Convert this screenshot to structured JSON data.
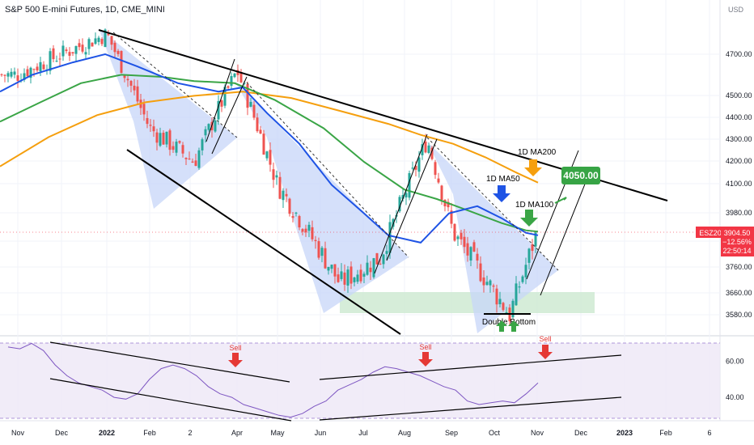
{
  "header": {
    "title": "S&P 500 E-mini Futures, 1D, CME_MINI",
    "currency": "USD"
  },
  "price_tag": {
    "symbol": "ESZ2022",
    "price": "3904.50",
    "change": "−12.56%",
    "countdown": "22:50:14"
  },
  "annotations": {
    "target": "4050.00",
    "ma200": "1D MA200",
    "ma50": "1D MA50",
    "ma100": "1D MA100",
    "double_bottom": "Double Bottom",
    "sell": "Sell"
  },
  "colors": {
    "candle_up": "#26a69a",
    "candle_down": "#ef5350",
    "ma50": "#1e53e5",
    "ma100": "#3aa546",
    "ma200": "#f59f0e",
    "channel_fill": "#c7d6f8",
    "support_zone": "#cfead2",
    "rsi_line": "#7e57c2",
    "rsi_band": "#ede7f6",
    "price_tag": "#f23645",
    "target_box": "#37a445"
  },
  "chart_data": [
    {
      "type": "candlestick",
      "title": "S&P 500 E-mini Futures, 1D, CME_MINI",
      "x_ticks": [
        "Nov",
        "Dec",
        "2022",
        "Feb",
        "2",
        "Apr",
        "May",
        "Jun",
        "Jul",
        "Aug",
        "Sep",
        "Oct",
        "Nov",
        "Dec",
        "2023",
        "Feb",
        "6"
      ],
      "y_ticks": [
        4700,
        4500,
        4400,
        4300,
        4200,
        4100,
        3980,
        3860,
        3760,
        3660,
        3580
      ],
      "y_unit": "USD",
      "ylim": [
        3540,
        4900
      ],
      "last_close": 3904.5,
      "key_points": [
        {
          "date": "Nov",
          "close": 4600
        },
        {
          "date": "Dec",
          "close": 4700
        },
        {
          "date": "2022",
          "close": 4800
        },
        {
          "date": "Feb",
          "close": 4350
        },
        {
          "date": "Mar",
          "close": 4200
        },
        {
          "date": "Apr",
          "close": 4620
        },
        {
          "date": "May",
          "close": 4100
        },
        {
          "date": "Jun",
          "close": 3700
        },
        {
          "date": "Jul",
          "close": 3800
        },
        {
          "date": "Aug",
          "close": 4300
        },
        {
          "date": "Sep",
          "close": 3900
        },
        {
          "date": "Oct",
          "close": 3580
        },
        {
          "date": "Nov",
          "close": 3904.5
        }
      ],
      "series": [
        {
          "name": "1D MA50",
          "color": "#1e53e5"
        },
        {
          "name": "1D MA100",
          "color": "#3aa546"
        },
        {
          "name": "1D MA200",
          "color": "#f59f0e"
        }
      ],
      "levels": [
        {
          "label": "4050.00",
          "value": 4050
        },
        {
          "label": "Double Bottom",
          "value": 3580
        }
      ]
    },
    {
      "type": "line",
      "name": "RSI",
      "y_ticks": [
        60,
        40
      ],
      "ylim": [
        27,
        72
      ],
      "band": [
        30,
        70
      ],
      "values": [
        68,
        67,
        70,
        66,
        58,
        52,
        48,
        46,
        44,
        40,
        39,
        42,
        50,
        56,
        58,
        56,
        52,
        46,
        42,
        40,
        36,
        34,
        32,
        30,
        29,
        31,
        35,
        38,
        44,
        47,
        50,
        54,
        57,
        56,
        54,
        52,
        49,
        46,
        44,
        38,
        36,
        37,
        38,
        37,
        42,
        48
      ],
      "signals": [
        "Sell",
        "Sell",
        "Sell"
      ]
    }
  ]
}
